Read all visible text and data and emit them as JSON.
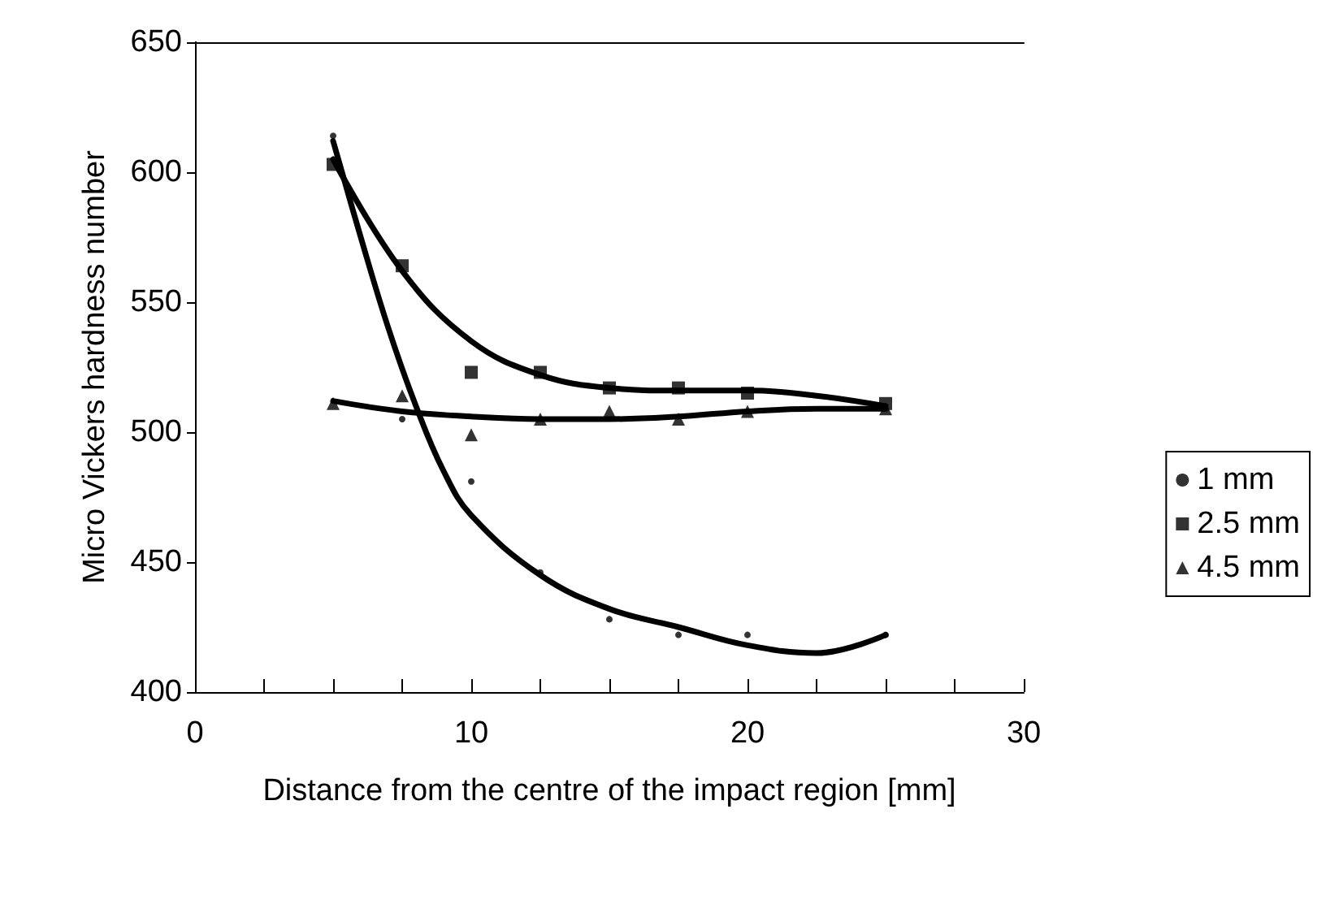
{
  "chart_data": {
    "type": "scatter",
    "xlabel": "Distance from the centre of the impact region [mm]",
    "ylabel": "Micro Vickers hardness number",
    "x": [
      5,
      7.5,
      10,
      12.5,
      15,
      17.5,
      20,
      25
    ],
    "xlim": [
      0,
      30
    ],
    "xticks": [
      0,
      {
        "value": 2.5,
        "label": null
      },
      {
        "value": 5,
        "label": null
      },
      {
        "value": 7.5,
        "label": null
      },
      10,
      {
        "value": 12.5,
        "label": null
      },
      {
        "value": 15,
        "label": null
      },
      {
        "value": 17.5,
        "label": null
      },
      20,
      {
        "value": 22.5,
        "label": null
      },
      {
        "value": 25,
        "label": null
      },
      {
        "value": 27.5,
        "label": null
      },
      30
    ],
    "ylim": [
      400,
      650
    ],
    "yticks": [
      400,
      450,
      500,
      550,
      600,
      650
    ],
    "grid": false,
    "legend": "right",
    "series": [
      {
        "name": "1 mm",
        "color": "#000000",
        "marker": "circle",
        "values": [
          614,
          505,
          481,
          446,
          428,
          422,
          422,
          422
        ]
      },
      {
        "name": "2.5 mm",
        "color": "#000000",
        "marker": "square",
        "values": [
          603,
          564,
          523,
          523,
          517,
          517,
          515,
          511
        ]
      },
      {
        "name": "4.5 mm",
        "color": "#000000",
        "marker": "triangle",
        "values": [
          511,
          514,
          499,
          505,
          508,
          505,
          508,
          509
        ]
      },
      {
        "type": "line",
        "color": "#000000",
        "marker": "none",
        "x": [
          5,
          6,
          7,
          8,
          9,
          10,
          12.5,
          15,
          17.5,
          20,
          22.5,
          25
        ],
        "values": [
          612,
          575,
          540,
          510,
          485,
          468,
          445,
          432,
          425,
          418,
          415,
          422
        ]
      },
      {
        "type": "line",
        "color": "#000000",
        "marker": "none",
        "x": [
          5,
          7.5,
          10,
          12.5,
          15,
          17.5,
          20,
          22.5,
          25
        ],
        "values": [
          605,
          562,
          535,
          522,
          517,
          516,
          516,
          514,
          510
        ]
      },
      {
        "type": "line",
        "color": "#000000",
        "marker": "none",
        "x": [
          5,
          7.5,
          10,
          12.5,
          15,
          17.5,
          20,
          22.5,
          25
        ],
        "values": [
          512,
          508,
          506,
          505,
          505,
          506,
          508,
          509,
          509
        ]
      }
    ]
  }
}
